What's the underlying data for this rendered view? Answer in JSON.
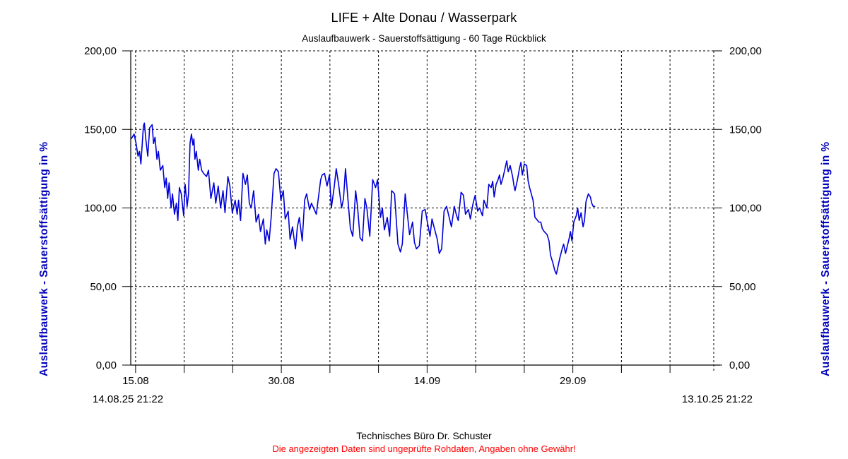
{
  "header": {
    "title": "LIFE + Alte Donau / Wasserpark",
    "subtitle": "Auslaufbauwerk - Sauerstoffsättigung - 60 Tage Rückblick"
  },
  "footer": {
    "company": "Technisches Büro Dr. Schuster",
    "disclaimer": "Die angezeigten Daten sind ungeprüfte Rohdaten, Angaben ohne Gewähr!"
  },
  "colors": {
    "series_line": "#0000d8",
    "axis_title": "#0000bb",
    "disclaimer_text": "#ff0000",
    "grid": "#000000"
  },
  "chart_data": {
    "type": "line",
    "title": "LIFE + Alte Donau / Wasserpark",
    "subtitle": "Auslaufbauwerk - Sauerstoffsättigung - 60 Tage Rückblick",
    "y_axis_title": "Auslaufbauwerk - Sauerstoffsättigung in %",
    "x_start_label": "14.08.25 21:22",
    "x_end_label": "13.10.25 21:22",
    "x_span_days": 60,
    "ylim": [
      0,
      200
    ],
    "grid": "dashed",
    "legend": "none",
    "y_ticks": [
      {
        "v": 0,
        "label": "0,00"
      },
      {
        "v": 50,
        "label": "50,00"
      },
      {
        "v": 100,
        "label": "100,00"
      },
      {
        "v": 150,
        "label": "150,00"
      },
      {
        "v": 200,
        "label": "200,00"
      }
    ],
    "x_ticks": [
      {
        "t": 0.5,
        "label": "15.08"
      },
      {
        "t": 5.5,
        "label": ""
      },
      {
        "t": 10.5,
        "label": ""
      },
      {
        "t": 15.5,
        "label": "30.08"
      },
      {
        "t": 20.5,
        "label": ""
      },
      {
        "t": 25.5,
        "label": ""
      },
      {
        "t": 30.5,
        "label": "14.09"
      },
      {
        "t": 35.5,
        "label": ""
      },
      {
        "t": 40.5,
        "label": ""
      },
      {
        "t": 45.5,
        "label": "29.09"
      },
      {
        "t": 50.5,
        "label": ""
      },
      {
        "t": 55.5,
        "label": ""
      }
    ],
    "series": [
      {
        "name": "Sauerstoffsättigung",
        "unit": "%",
        "color": "#0000d8",
        "points": [
          [
            0.05,
            144
          ],
          [
            0.35,
            147
          ],
          [
            0.55,
            141
          ],
          [
            0.75,
            133
          ],
          [
            0.9,
            136
          ],
          [
            1.05,
            128
          ],
          [
            1.3,
            152
          ],
          [
            1.4,
            154
          ],
          [
            1.55,
            144
          ],
          [
            1.75,
            133
          ],
          [
            1.95,
            151
          ],
          [
            2.2,
            153
          ],
          [
            2.35,
            141
          ],
          [
            2.5,
            145
          ],
          [
            2.7,
            131
          ],
          [
            2.85,
            136
          ],
          [
            3.05,
            124
          ],
          [
            3.3,
            127
          ],
          [
            3.5,
            113
          ],
          [
            3.65,
            119
          ],
          [
            3.8,
            106
          ],
          [
            3.95,
            116
          ],
          [
            4.15,
            100
          ],
          [
            4.3,
            109
          ],
          [
            4.5,
            96
          ],
          [
            4.7,
            103
          ],
          [
            4.85,
            92
          ],
          [
            5.0,
            113
          ],
          [
            5.2,
            109
          ],
          [
            5.45,
            95
          ],
          [
            5.6,
            115
          ],
          [
            5.8,
            101
          ],
          [
            5.95,
            109
          ],
          [
            6.1,
            141
          ],
          [
            6.25,
            147
          ],
          [
            6.4,
            140
          ],
          [
            6.5,
            144
          ],
          [
            6.6,
            131
          ],
          [
            6.75,
            136
          ],
          [
            6.95,
            124
          ],
          [
            7.1,
            131
          ],
          [
            7.3,
            124
          ],
          [
            7.5,
            122
          ],
          [
            7.8,
            120
          ],
          [
            8.0,
            124
          ],
          [
            8.25,
            106
          ],
          [
            8.55,
            116
          ],
          [
            8.75,
            103
          ],
          [
            9.0,
            114
          ],
          [
            9.25,
            100
          ],
          [
            9.5,
            111
          ],
          [
            9.7,
            97
          ],
          [
            10.0,
            120
          ],
          [
            10.2,
            114
          ],
          [
            10.45,
            97
          ],
          [
            10.75,
            105
          ],
          [
            10.95,
            96
          ],
          [
            11.1,
            105
          ],
          [
            11.3,
            92
          ],
          [
            11.55,
            122
          ],
          [
            11.8,
            115
          ],
          [
            12.0,
            121
          ],
          [
            12.2,
            103
          ],
          [
            12.4,
            100
          ],
          [
            12.65,
            111
          ],
          [
            12.9,
            91
          ],
          [
            13.15,
            96
          ],
          [
            13.35,
            85
          ],
          [
            13.65,
            93
          ],
          [
            13.85,
            77
          ],
          [
            14.0,
            86
          ],
          [
            14.25,
            79
          ],
          [
            14.45,
            94
          ],
          [
            14.75,
            122
          ],
          [
            14.95,
            125
          ],
          [
            15.2,
            123
          ],
          [
            15.45,
            105
          ],
          [
            15.7,
            111
          ],
          [
            15.9,
            93
          ],
          [
            16.2,
            98
          ],
          [
            16.4,
            80
          ],
          [
            16.65,
            88
          ],
          [
            16.95,
            74
          ],
          [
            17.15,
            88
          ],
          [
            17.35,
            94
          ],
          [
            17.65,
            79
          ],
          [
            17.9,
            105
          ],
          [
            18.1,
            109
          ],
          [
            18.4,
            99
          ],
          [
            18.6,
            103
          ],
          [
            19.1,
            96
          ],
          [
            19.55,
            118
          ],
          [
            19.7,
            121
          ],
          [
            19.95,
            122
          ],
          [
            20.2,
            114
          ],
          [
            20.45,
            121
          ],
          [
            20.65,
            100
          ],
          [
            20.95,
            114
          ],
          [
            21.15,
            125
          ],
          [
            21.4,
            115
          ],
          [
            21.7,
            100
          ],
          [
            21.9,
            106
          ],
          [
            22.1,
            125
          ],
          [
            22.4,
            102
          ],
          [
            22.6,
            87
          ],
          [
            22.85,
            82
          ],
          [
            23.15,
            111
          ],
          [
            23.35,
            100
          ],
          [
            23.6,
            81
          ],
          [
            23.85,
            79
          ],
          [
            24.1,
            106
          ],
          [
            24.3,
            100
          ],
          [
            24.6,
            82
          ],
          [
            24.9,
            118
          ],
          [
            25.2,
            113
          ],
          [
            25.4,
            118
          ],
          [
            25.7,
            94
          ],
          [
            25.9,
            100
          ],
          [
            26.1,
            86
          ],
          [
            26.4,
            94
          ],
          [
            26.65,
            82
          ],
          [
            26.85,
            111
          ],
          [
            27.15,
            109
          ],
          [
            27.5,
            77
          ],
          [
            27.75,
            72
          ],
          [
            27.95,
            77
          ],
          [
            28.25,
            109
          ],
          [
            28.45,
            97
          ],
          [
            28.7,
            83
          ],
          [
            29.0,
            91
          ],
          [
            29.2,
            78
          ],
          [
            29.4,
            74
          ],
          [
            29.7,
            76
          ],
          [
            30.0,
            98
          ],
          [
            30.3,
            99
          ],
          [
            30.5,
            92
          ],
          [
            30.8,
            82
          ],
          [
            31.0,
            93
          ],
          [
            31.25,
            87
          ],
          [
            31.55,
            80
          ],
          [
            31.75,
            71
          ],
          [
            32.0,
            74
          ],
          [
            32.25,
            98
          ],
          [
            32.5,
            101
          ],
          [
            32.7,
            96
          ],
          [
            33.0,
            88
          ],
          [
            33.3,
            101
          ],
          [
            33.5,
            96
          ],
          [
            33.7,
            92
          ],
          [
            34.0,
            110
          ],
          [
            34.25,
            108
          ],
          [
            34.45,
            96
          ],
          [
            34.75,
            99
          ],
          [
            34.95,
            93
          ],
          [
            35.2,
            102
          ],
          [
            35.45,
            108
          ],
          [
            35.7,
            98
          ],
          [
            35.9,
            100
          ],
          [
            36.2,
            95
          ],
          [
            36.35,
            105
          ],
          [
            36.65,
            100
          ],
          [
            36.85,
            115
          ],
          [
            37.1,
            113
          ],
          [
            37.25,
            117
          ],
          [
            37.4,
            107
          ],
          [
            37.6,
            115
          ],
          [
            37.8,
            118
          ],
          [
            37.95,
            121
          ],
          [
            38.1,
            115
          ],
          [
            38.3,
            119
          ],
          [
            38.55,
            126
          ],
          [
            38.7,
            130
          ],
          [
            38.85,
            123
          ],
          [
            39.05,
            127
          ],
          [
            39.3,
            120
          ],
          [
            39.45,
            114
          ],
          [
            39.55,
            111
          ],
          [
            39.8,
            118
          ],
          [
            40.0,
            125
          ],
          [
            40.15,
            129
          ],
          [
            40.3,
            121
          ],
          [
            40.5,
            128
          ],
          [
            40.75,
            127
          ],
          [
            40.9,
            117
          ],
          [
            41.05,
            113
          ],
          [
            41.4,
            105
          ],
          [
            41.6,
            94
          ],
          [
            41.75,
            93
          ],
          [
            42.0,
            91
          ],
          [
            42.2,
            91
          ],
          [
            42.35,
            87
          ],
          [
            42.55,
            85
          ],
          [
            42.85,
            83
          ],
          [
            43.05,
            79
          ],
          [
            43.2,
            70
          ],
          [
            43.45,
            65
          ],
          [
            43.65,
            60
          ],
          [
            43.8,
            58
          ],
          [
            43.95,
            62
          ],
          [
            44.15,
            68
          ],
          [
            44.4,
            74
          ],
          [
            44.55,
            77
          ],
          [
            44.75,
            71
          ],
          [
            44.9,
            75
          ],
          [
            45.1,
            80
          ],
          [
            45.25,
            85
          ],
          [
            45.4,
            79
          ],
          [
            45.6,
            91
          ],
          [
            45.85,
            95
          ],
          [
            46.0,
            100
          ],
          [
            46.15,
            92
          ],
          [
            46.35,
            97
          ],
          [
            46.55,
            88
          ],
          [
            46.7,
            92
          ],
          [
            46.85,
            104
          ],
          [
            47.1,
            109
          ],
          [
            47.3,
            107
          ],
          [
            47.45,
            103
          ],
          [
            47.6,
            101
          ],
          [
            47.8,
            101
          ]
        ]
      }
    ]
  }
}
